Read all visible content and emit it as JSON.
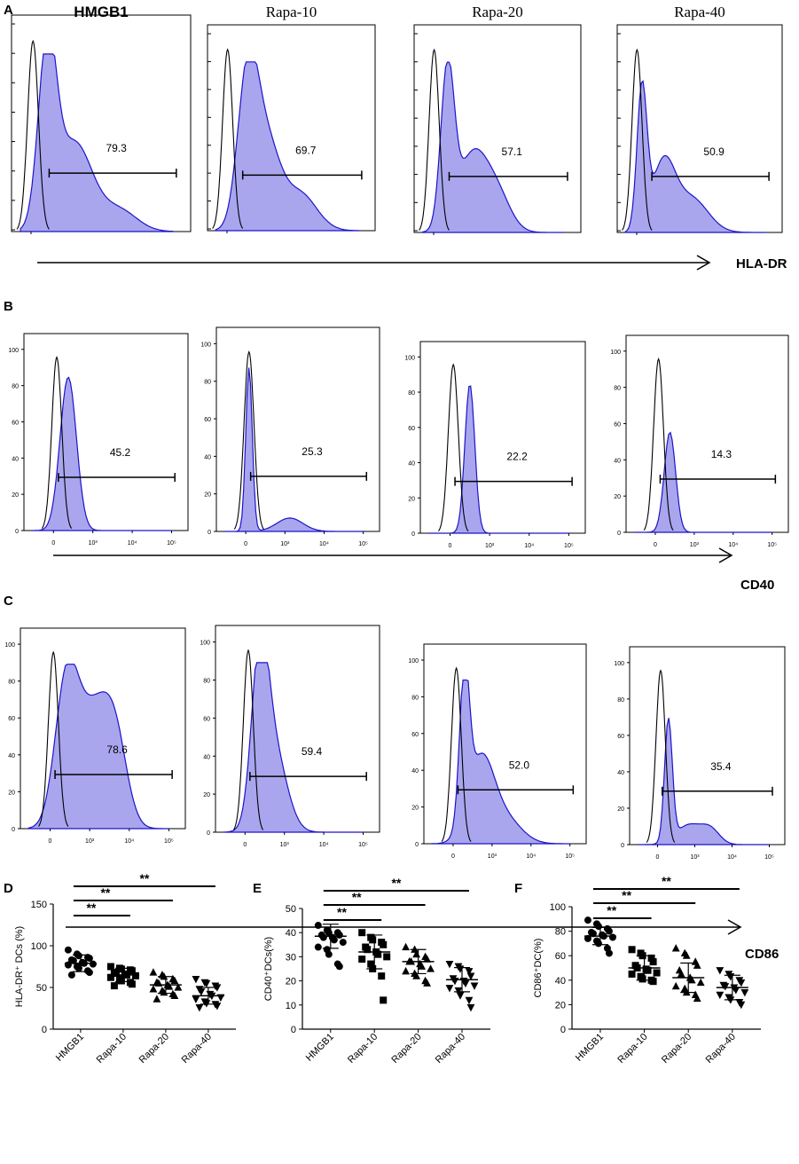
{
  "colors": {
    "fill": "#a9a6ee",
    "stroke": "#1c14c9",
    "control": "#000000"
  },
  "chart_data": [
    {
      "panel": "A",
      "type": "histogram",
      "marker": "HLA-DR",
      "ylabel": "",
      "xticklabels": [],
      "plots": [
        {
          "condition": "HMGB1",
          "percent": "79.3",
          "control_peak": 0.12,
          "sample_peaks": [
            [
              0.2,
              1.0,
              0.05
            ],
            [
              0.35,
              0.5,
              0.1
            ],
            [
              0.6,
              0.12,
              0.1
            ]
          ]
        },
        {
          "condition": "Rapa-10",
          "percent": "69.7",
          "control_peak": 0.12,
          "sample_peaks": [
            [
              0.24,
              0.88,
              0.06
            ],
            [
              0.35,
              0.5,
              0.08
            ],
            [
              0.55,
              0.22,
              0.1
            ]
          ]
        },
        {
          "condition": "Rapa-20",
          "percent": "57.1",
          "control_peak": 0.12,
          "sample_peaks": [
            [
              0.2,
              0.92,
              0.04
            ],
            [
              0.35,
              0.45,
              0.09
            ],
            [
              0.5,
              0.2,
              0.08
            ]
          ]
        },
        {
          "condition": "Rapa-40",
          "percent": "50.9",
          "control_peak": 0.12,
          "sample_peaks": [
            [
              0.15,
              0.82,
              0.03
            ],
            [
              0.28,
              0.4,
              0.07
            ],
            [
              0.45,
              0.2,
              0.1
            ]
          ]
        }
      ]
    },
    {
      "panel": "B",
      "type": "histogram",
      "marker": "CD40",
      "yticklabels": [
        "0",
        "20",
        "40",
        "60",
        "80",
        "100"
      ],
      "xticklabels": [
        "0",
        "10³",
        "10⁴",
        "10⁵"
      ],
      "plots": [
        {
          "condition": "HMGB1",
          "percent": "45.2",
          "control_peak": 0.2,
          "sample_peaks": [
            [
              0.27,
              0.95,
              0.05
            ]
          ]
        },
        {
          "condition": "Rapa-10",
          "percent": "25.3",
          "control_peak": 0.2,
          "sample_peaks": [
            [
              0.2,
              0.98,
              0.02
            ],
            [
              0.45,
              0.08,
              0.08
            ]
          ]
        },
        {
          "condition": "Rapa-20",
          "percent": "22.2",
          "control_peak": 0.2,
          "sample_peaks": [
            [
              0.3,
              0.95,
              0.03
            ]
          ]
        },
        {
          "condition": "Rapa-40",
          "percent": "14.3",
          "control_peak": 0.2,
          "sample_peaks": [
            [
              0.27,
              0.62,
              0.035
            ]
          ]
        }
      ]
    },
    {
      "panel": "C",
      "type": "histogram",
      "marker": "CD86",
      "yticklabels": [
        "0",
        "20",
        "40",
        "60",
        "80",
        "100"
      ],
      "xticklabels": [
        "0",
        "10³",
        "10⁴",
        "10⁵"
      ],
      "plots": [
        {
          "condition": "HMGB1",
          "percent": "78.6",
          "control_peak": 0.2,
          "sample_peaks": [
            [
              0.28,
              0.85,
              0.07
            ],
            [
              0.45,
              0.7,
              0.1
            ],
            [
              0.58,
              0.4,
              0.07
            ]
          ]
        },
        {
          "condition": "Rapa-10",
          "percent": "59.4",
          "control_peak": 0.2,
          "sample_peaks": [
            [
              0.27,
              0.9,
              0.05
            ],
            [
              0.35,
              0.5,
              0.08
            ]
          ]
        },
        {
          "condition": "Rapa-20",
          "percent": "52.0",
          "control_peak": 0.2,
          "sample_peaks": [
            [
              0.25,
              0.9,
              0.03
            ],
            [
              0.35,
              0.5,
              0.08
            ],
            [
              0.5,
              0.15,
              0.1
            ]
          ]
        },
        {
          "condition": "Rapa-40",
          "percent": "35.4",
          "control_peak": 0.2,
          "sample_peaks": [
            [
              0.25,
              0.75,
              0.025
            ],
            [
              0.38,
              0.12,
              0.08
            ],
            [
              0.52,
              0.09,
              0.06
            ]
          ]
        }
      ]
    },
    {
      "panel": "D",
      "type": "scatter",
      "ylabel": "HLA-DR⁺ DCs (%)",
      "categories": [
        "HMGB1",
        "Rapa-10",
        "Rapa-20",
        "Rapa-40"
      ],
      "ylim": [
        0,
        150
      ],
      "yticks": [
        0,
        50,
        100,
        150
      ],
      "means": [
        79,
        65,
        53,
        40
      ],
      "sd": [
        10,
        8,
        10,
        10
      ],
      "markers": [
        "circle",
        "square",
        "triangle-up",
        "triangle-down"
      ],
      "points": [
        [
          95,
          90,
          88,
          86,
          85,
          83,
          82,
          80,
          79,
          78,
          77,
          75,
          73,
          70,
          68,
          65
        ],
        [
          75,
          73,
          72,
          71,
          70,
          68,
          67,
          66,
          65,
          64,
          62,
          60,
          58,
          56,
          54,
          52
        ],
        [
          68,
          65,
          63,
          60,
          58,
          56,
          55,
          53,
          51,
          50,
          48,
          46,
          44,
          42,
          40,
          36
        ],
        [
          60,
          56,
          55,
          52,
          50,
          48,
          45,
          42,
          40,
          38,
          36,
          33,
          31,
          30,
          28,
          26
        ]
      ],
      "comparisons": [
        {
          "from": "HMGB1",
          "to": "Rapa-10",
          "label": "**"
        },
        {
          "from": "HMGB1",
          "to": "Rapa-20",
          "label": "**"
        },
        {
          "from": "HMGB1",
          "to": "Rapa-40",
          "label": "**"
        }
      ]
    },
    {
      "panel": "E",
      "type": "scatter",
      "ylabel": "CD40⁺DCs(%)",
      "categories": [
        "HMGB1",
        "Rapa-10",
        "Rapa-20",
        "Rapa-40"
      ],
      "ylim": [
        0,
        50
      ],
      "yticks": [
        0,
        10,
        20,
        30,
        40,
        50
      ],
      "means": [
        38.5,
        32,
        28,
        20.5
      ],
      "sd": [
        5,
        7,
        5,
        5
      ],
      "markers": [
        "circle",
        "square",
        "triangle-up",
        "triangle-down"
      ],
      "points": [
        [
          43,
          41,
          40,
          40,
          39,
          39,
          38,
          38,
          37,
          36,
          34,
          33,
          31,
          27,
          26
        ],
        [
          40,
          38,
          37,
          36,
          35,
          34,
          33,
          32,
          31,
          30,
          29,
          27,
          25,
          22,
          12
        ],
        [
          34,
          33,
          31,
          30,
          29,
          28,
          28,
          27,
          26,
          25,
          24,
          23,
          22,
          20,
          19
        ],
        [
          27,
          26,
          25,
          24,
          22,
          21,
          20,
          20,
          19,
          18,
          17,
          16,
          14,
          12,
          9
        ]
      ],
      "comparisons": [
        {
          "from": "HMGB1",
          "to": "Rapa-10",
          "label": "**"
        },
        {
          "from": "HMGB1",
          "to": "Rapa-20",
          "label": "**"
        },
        {
          "from": "HMGB1",
          "to": "Rapa-40",
          "label": "**"
        }
      ]
    },
    {
      "panel": "F",
      "type": "scatter",
      "ylabel": "CD86⁺DC(%)",
      "categories": [
        "HMGB1",
        "Rapa-10",
        "Rapa-20",
        "Rapa-40"
      ],
      "ylim": [
        0,
        100
      ],
      "yticks": [
        0,
        20,
        40,
        60,
        80,
        100
      ],
      "means": [
        76,
        50,
        42,
        34
      ],
      "sd": [
        7,
        10,
        12,
        10
      ],
      "markers": [
        "circle",
        "square",
        "triangle-up",
        "triangle-down"
      ],
      "points": [
        [
          89,
          86,
          84,
          82,
          80,
          79,
          78,
          77,
          76,
          75,
          74,
          72,
          70,
          66,
          62
        ],
        [
          65,
          62,
          60,
          58,
          55,
          52,
          50,
          49,
          48,
          46,
          45,
          43,
          41,
          40,
          39
        ],
        [
          66,
          62,
          60,
          55,
          52,
          48,
          45,
          42,
          40,
          38,
          35,
          33,
          30,
          28,
          25
        ],
        [
          48,
          45,
          43,
          40,
          38,
          36,
          35,
          34,
          32,
          30,
          28,
          26,
          24,
          22,
          20
        ]
      ],
      "comparisons": [
        {
          "from": "HMGB1",
          "to": "Rapa-10",
          "label": "**"
        },
        {
          "from": "HMGB1",
          "to": "Rapa-20",
          "label": "**"
        },
        {
          "from": "HMGB1",
          "to": "Rapa-40",
          "label": "**"
        }
      ]
    }
  ]
}
